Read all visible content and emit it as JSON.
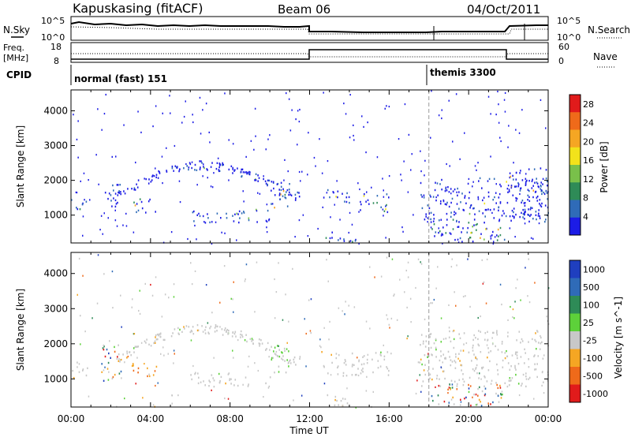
{
  "header": {
    "title": "Kapuskasing (fitACF)",
    "beam": "Beam 06",
    "date": "04/Oct/2011"
  },
  "strip_labels": {
    "nsky": "N.Sky",
    "nsearch": "N.Search",
    "freq_line1": "Freq.",
    "freq_line2": "[MHz]",
    "nave": "Nave",
    "cpid": "CPID",
    "noise_tick_high": "10^5",
    "noise_tick_low": "10^0",
    "freq_tick_high": "18",
    "freq_tick_low": "8",
    "nave_tick_high": "60",
    "nave_tick_low": "0"
  },
  "cpid_segments": [
    {
      "label": "normal (fast) 151",
      "start_hour": 0,
      "end_hour": 18
    },
    {
      "label": "themis 3300",
      "start_hour": 18,
      "end_hour": 24
    }
  ],
  "axes": {
    "ylabel": "Slant Range [km]",
    "xlabel": "Time UT",
    "power_cbar_label": "Power [dB]",
    "velocity_cbar_label": "Velocity [m s^-1]"
  },
  "chart_data": [
    {
      "type": "heatmap",
      "title": "Power",
      "x_range_hours": [
        0,
        24
      ],
      "xticks": [
        "00:00",
        "04:00",
        "08:00",
        "12:00",
        "16:00",
        "20:00",
        "00:00"
      ],
      "ylim": [
        200,
        4600
      ],
      "yticks": [
        1000,
        2000,
        3000,
        4000
      ],
      "colorbar": {
        "label": "Power [dB]",
        "ticks": [
          4,
          8,
          12,
          16,
          20,
          24,
          28
        ],
        "range": [
          0,
          30
        ],
        "colors": [
          "#1c1ce6",
          "#2f6bb8",
          "#2e8b57",
          "#79c04a",
          "#f2e21b",
          "#f5a623",
          "#ef6a1a",
          "#e11b1b"
        ]
      },
      "regions": [
        {
          "t": [
            0.0,
            0.8
          ],
          "r": [
            1050,
            1500
          ],
          "level": 0.6
        },
        {
          "t": [
            1.7,
            2.5
          ],
          "r": [
            1150,
            2000
          ],
          "level": 0.35
        },
        {
          "t": [
            2.2,
            11.5
          ],
          "r": [
            1950,
            2600
          ],
          "level": 0.3,
          "arc": true
        },
        {
          "t": [
            3.0,
            4.3
          ],
          "r": [
            1100,
            1500
          ],
          "level": 0.7
        },
        {
          "t": [
            6.0,
            10.0
          ],
          "r": [
            800,
            1200
          ],
          "level": 0.45
        },
        {
          "t": [
            10.0,
            11.0
          ],
          "r": [
            1200,
            2000
          ],
          "level": 0.45
        },
        {
          "t": [
            12.5,
            14.0
          ],
          "r": [
            1350,
            1800
          ],
          "level": 0.35
        },
        {
          "t": [
            14.5,
            16.0
          ],
          "r": [
            1100,
            1650
          ],
          "level": 0.65
        },
        {
          "t": [
            12.8,
            14.3
          ],
          "r": [
            250,
            600
          ],
          "level": 0.55
        },
        {
          "t": [
            17.5,
            24.0
          ],
          "r": [
            800,
            2100
          ],
          "level": 0.35
        },
        {
          "t": [
            18.0,
            21.8
          ],
          "r": [
            250,
            900
          ],
          "level": 0.75
        },
        {
          "t": [
            22.0,
            24.0
          ],
          "r": [
            900,
            2400
          ],
          "level": 0.4
        }
      ]
    },
    {
      "type": "heatmap",
      "title": "Velocity",
      "x_range_hours": [
        0,
        24
      ],
      "xticks": [
        "00:00",
        "04:00",
        "08:00",
        "12:00",
        "16:00",
        "20:00",
        "00:00"
      ],
      "ylim": [
        200,
        4600
      ],
      "yticks": [
        1000,
        2000,
        3000,
        4000
      ],
      "colorbar": {
        "label": "Velocity [m s^-1]",
        "ticks": [
          1000,
          500,
          100,
          25,
          -25,
          -100,
          -500,
          -1000
        ],
        "colors": [
          "#1f3fbf",
          "#2f6bb8",
          "#2e8b57",
          "#5dd13a",
          "#c8c8c8",
          "#f5a623",
          "#ef6a1a",
          "#e11b1b"
        ]
      },
      "regions": [
        {
          "t": [
            0.0,
            0.8
          ],
          "r": [
            1050,
            1500
          ],
          "kind": "grey"
        },
        {
          "t": [
            1.5,
            2.5
          ],
          "r": [
            900,
            2000
          ],
          "kind": "mixed"
        },
        {
          "t": [
            2.2,
            11.5
          ],
          "r": [
            1950,
            2600
          ],
          "kind": "grey",
          "arc": true
        },
        {
          "t": [
            3.0,
            4.3
          ],
          "r": [
            1100,
            1500
          ],
          "kind": "orange"
        },
        {
          "t": [
            6.0,
            10.0
          ],
          "r": [
            800,
            1200
          ],
          "kind": "grey"
        },
        {
          "t": [
            10.0,
            11.0
          ],
          "r": [
            1200,
            2000
          ],
          "kind": "green"
        },
        {
          "t": [
            12.5,
            16.0
          ],
          "r": [
            1100,
            1800
          ],
          "kind": "grey"
        },
        {
          "t": [
            12.8,
            14.3
          ],
          "r": [
            250,
            600
          ],
          "kind": "grey"
        },
        {
          "t": [
            17.5,
            24.0
          ],
          "r": [
            800,
            2400
          ],
          "kind": "grey"
        },
        {
          "t": [
            18.0,
            21.8
          ],
          "r": [
            250,
            900
          ],
          "kind": "mixed"
        }
      ]
    }
  ]
}
